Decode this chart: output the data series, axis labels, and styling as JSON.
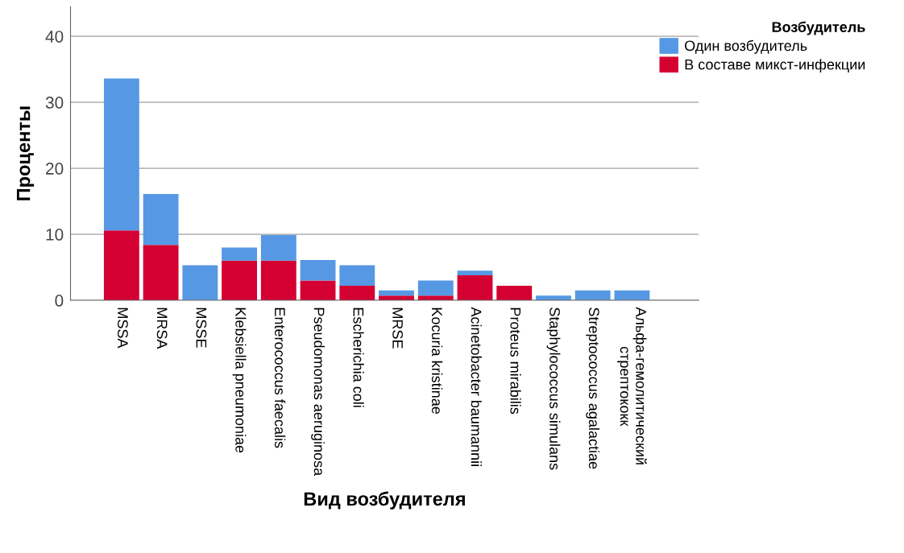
{
  "chart_data": {
    "type": "bar",
    "stacked": true,
    "xlabel": "Вид возбудителя",
    "ylabel": "Проценты",
    "legend_title": "Возбудитель",
    "legend": "top right",
    "grid": "y",
    "categories": [
      "MSSA",
      "MRSA",
      "MSSE",
      "Klebsiella pneumoniae",
      "Enterococcus faecalis",
      "Pseudomonas aeruginosa",
      "Escherichia coli",
      "MRSE",
      "Kocuria kristinae",
      "Acinetobacter baumannii",
      "Proteus mirabilis",
      "Staphylococcus simulans",
      "Streptococcus agalactiae",
      "Альфа-гемолитический стрептококк"
    ],
    "series": [
      {
        "name": "В составе микст-инфекции",
        "color": "#d50032",
        "values": [
          10.6,
          8.4,
          0,
          6.0,
          6.0,
          3.0,
          2.2,
          0.7,
          0.7,
          3.8,
          2.2,
          0,
          0,
          0
        ]
      },
      {
        "name": "Один возбудитель",
        "color": "#5698e3",
        "values": [
          23.0,
          7.7,
          5.3,
          2.0,
          3.9,
          3.1,
          3.1,
          0.8,
          2.3,
          0.7,
          0,
          0.7,
          1.5,
          1.5
        ]
      }
    ],
    "ylim": [
      0,
      44.5
    ],
    "yticks": [
      0,
      10,
      20,
      30,
      40
    ]
  }
}
